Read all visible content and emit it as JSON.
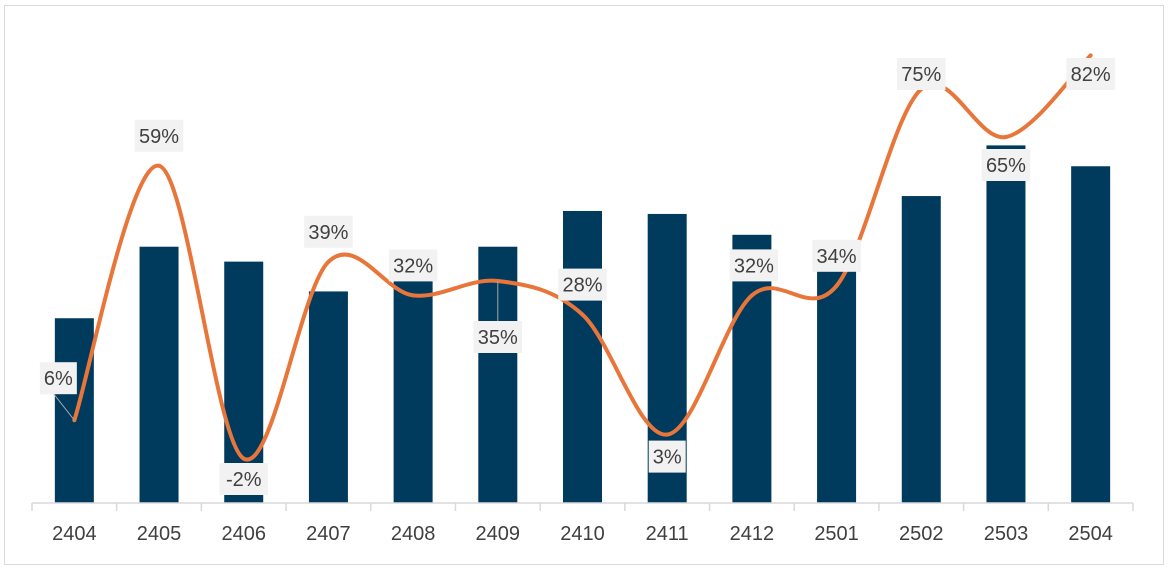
{
  "chart_data": {
    "type": "bar",
    "categories": [
      "2404",
      "2405",
      "2406",
      "2407",
      "2408",
      "2409",
      "2410",
      "2411",
      "2412",
      "2501",
      "2502",
      "2503",
      "2504"
    ],
    "series": [
      {
        "type": "bar",
        "color": "#003a5d",
        "values": [
          62,
          86,
          81,
          71,
          80,
          86,
          98,
          97,
          90,
          78,
          103,
          120,
          113
        ]
      },
      {
        "type": "line",
        "color": "#e8763a",
        "values": [
          6,
          59,
          -2,
          39,
          32,
          35,
          28,
          3,
          32,
          34,
          75,
          65,
          82
        ],
        "labels": [
          "6%",
          "59%",
          "-2%",
          "39%",
          "32%",
          "35%",
          "28%",
          "3%",
          "32%",
          "34%",
          "75%",
          "65%",
          "82%"
        ]
      }
    ],
    "title": "",
    "xlabel": "",
    "ylabel": "",
    "grid": false,
    "legend": "none",
    "axis_color": "#d9d9d9",
    "label_box_color": "#f2f2f2"
  }
}
